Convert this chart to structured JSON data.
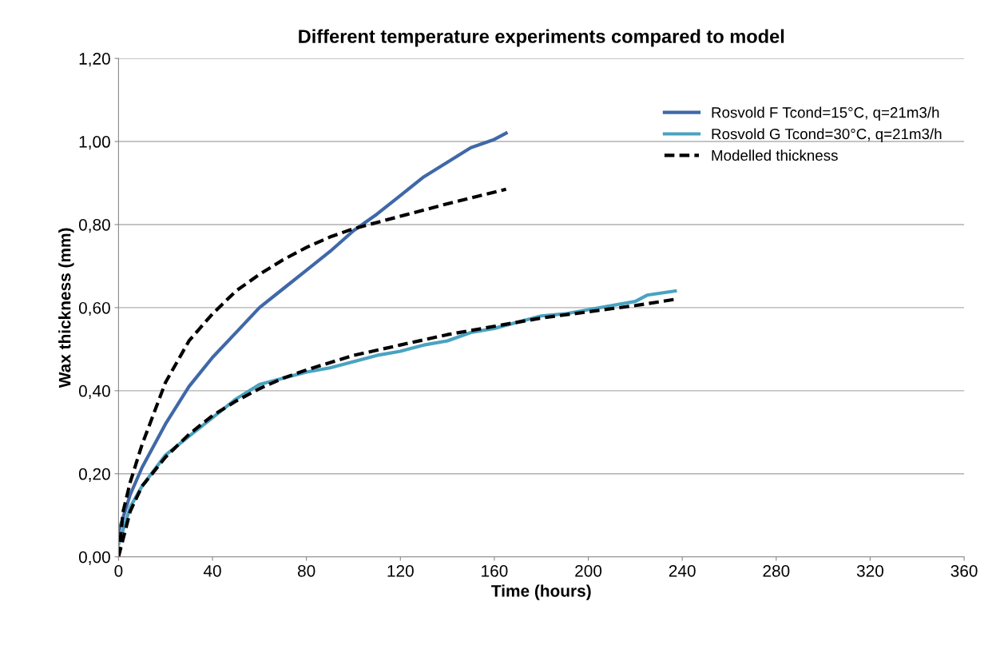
{
  "chart_data": {
    "type": "line",
    "title": "Different temperature experiments compared to model",
    "xlabel": "Time (hours)",
    "ylabel": "Wax thickness (mm)",
    "xlim": [
      0,
      360
    ],
    "xticks": [
      0,
      40,
      80,
      120,
      160,
      200,
      240,
      280,
      320,
      360
    ],
    "ylim": [
      0,
      1.2
    ],
    "yticks": [
      {
        "value": 0,
        "label": "0,00"
      },
      {
        "value": 0.2,
        "label": "0,20"
      },
      {
        "value": 0.4,
        "label": "0,40"
      },
      {
        "value": 0.6,
        "label": "0,60"
      },
      {
        "value": 0.8,
        "label": "0,80"
      },
      {
        "value": 1.0,
        "label": "1,00"
      },
      {
        "value": 1.2,
        "label": "1,20"
      }
    ],
    "grid": "y",
    "legend": "top right",
    "marker": "none",
    "series": [
      {
        "name": "Rosvold F Tcond=15°C, q=21m3/h",
        "color": "#4068a8",
        "line_style": "solid",
        "x": [
          0,
          5,
          10,
          20,
          30,
          40,
          50,
          60,
          70,
          80,
          90,
          100,
          110,
          120,
          130,
          140,
          150,
          160,
          165
        ],
        "values": [
          0.06,
          0.15,
          0.215,
          0.32,
          0.41,
          0.48,
          0.54,
          0.6,
          0.645,
          0.69,
          0.735,
          0.785,
          0.825,
          0.87,
          0.915,
          0.95,
          0.985,
          1.005,
          1.02
        ]
      },
      {
        "name": "Rosvold G Tcond=30°C, q=21m3/h",
        "color": "#4aa3c0",
        "line_style": "solid",
        "x": [
          0,
          5,
          10,
          20,
          30,
          40,
          50,
          60,
          70,
          80,
          90,
          100,
          110,
          120,
          130,
          140,
          150,
          160,
          170,
          180,
          190,
          200,
          210,
          220,
          225,
          237
        ],
        "values": [
          0.03,
          0.12,
          0.17,
          0.245,
          0.29,
          0.335,
          0.38,
          0.415,
          0.43,
          0.445,
          0.455,
          0.47,
          0.485,
          0.495,
          0.51,
          0.52,
          0.54,
          0.55,
          0.565,
          0.58,
          0.585,
          0.595,
          0.605,
          0.615,
          0.63,
          0.64
        ]
      },
      {
        "name": "Modelled thickness",
        "color": "#000000",
        "line_style": "dashed",
        "x": [
          0,
          2,
          5,
          10,
          20,
          30,
          40,
          50,
          60,
          70,
          80,
          90,
          100,
          120,
          140,
          165
        ],
        "values": [
          0,
          0.11,
          0.18,
          0.27,
          0.42,
          0.52,
          0.585,
          0.64,
          0.68,
          0.715,
          0.745,
          0.77,
          0.79,
          0.82,
          0.85,
          0.885
        ]
      },
      {
        "color": "#000000",
        "line_style": "dashed",
        "x": [
          0,
          5,
          10,
          20,
          30,
          40,
          50,
          60,
          70,
          80,
          100,
          120,
          140,
          160,
          180,
          200,
          220,
          237
        ],
        "values": [
          0,
          0.11,
          0.17,
          0.24,
          0.295,
          0.34,
          0.375,
          0.405,
          0.43,
          0.45,
          0.485,
          0.51,
          0.535,
          0.555,
          0.575,
          0.59,
          0.605,
          0.62
        ]
      }
    ]
  }
}
